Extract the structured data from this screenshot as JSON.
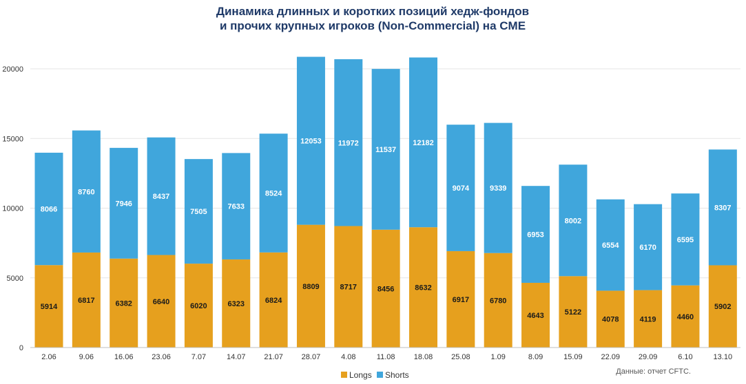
{
  "chart_data": {
    "type": "bar",
    "stacked": true,
    "title": [
      "Динамика длинных и коротких позиций хедж-фондов",
      "и прочих крупных игроков (Non-Commercial) на CME"
    ],
    "categories": [
      "2.06",
      "9.06",
      "16.06",
      "23.06",
      "7.07",
      "14.07",
      "21.07",
      "28.07",
      "4.08",
      "11.08",
      "18.08",
      "25.08",
      "1.09",
      "8.09",
      "15.09",
      "22.09",
      "29.09",
      "6.10",
      "13.10"
    ],
    "series": [
      {
        "name": "Longs",
        "color": "#e6a01e",
        "values": [
          5914,
          6817,
          6382,
          6640,
          6020,
          6323,
          6824,
          8809,
          8717,
          8456,
          8632,
          6917,
          6780,
          4643,
          5122,
          4078,
          4119,
          4460,
          5902
        ]
      },
      {
        "name": "Shorts",
        "color": "#40a6dc",
        "values": [
          8066,
          8760,
          7946,
          8437,
          7505,
          7633,
          8524,
          12053,
          11972,
          11537,
          12182,
          9074,
          9339,
          6953,
          8002,
          6554,
          6170,
          6595,
          8307
        ]
      }
    ],
    "ylim": [
      0,
      20000
    ],
    "yticks": [
      0,
      5000,
      10000,
      15000,
      20000
    ],
    "grid": true,
    "legend": "bottom-center",
    "source": "Данные: отчет CFTC."
  }
}
